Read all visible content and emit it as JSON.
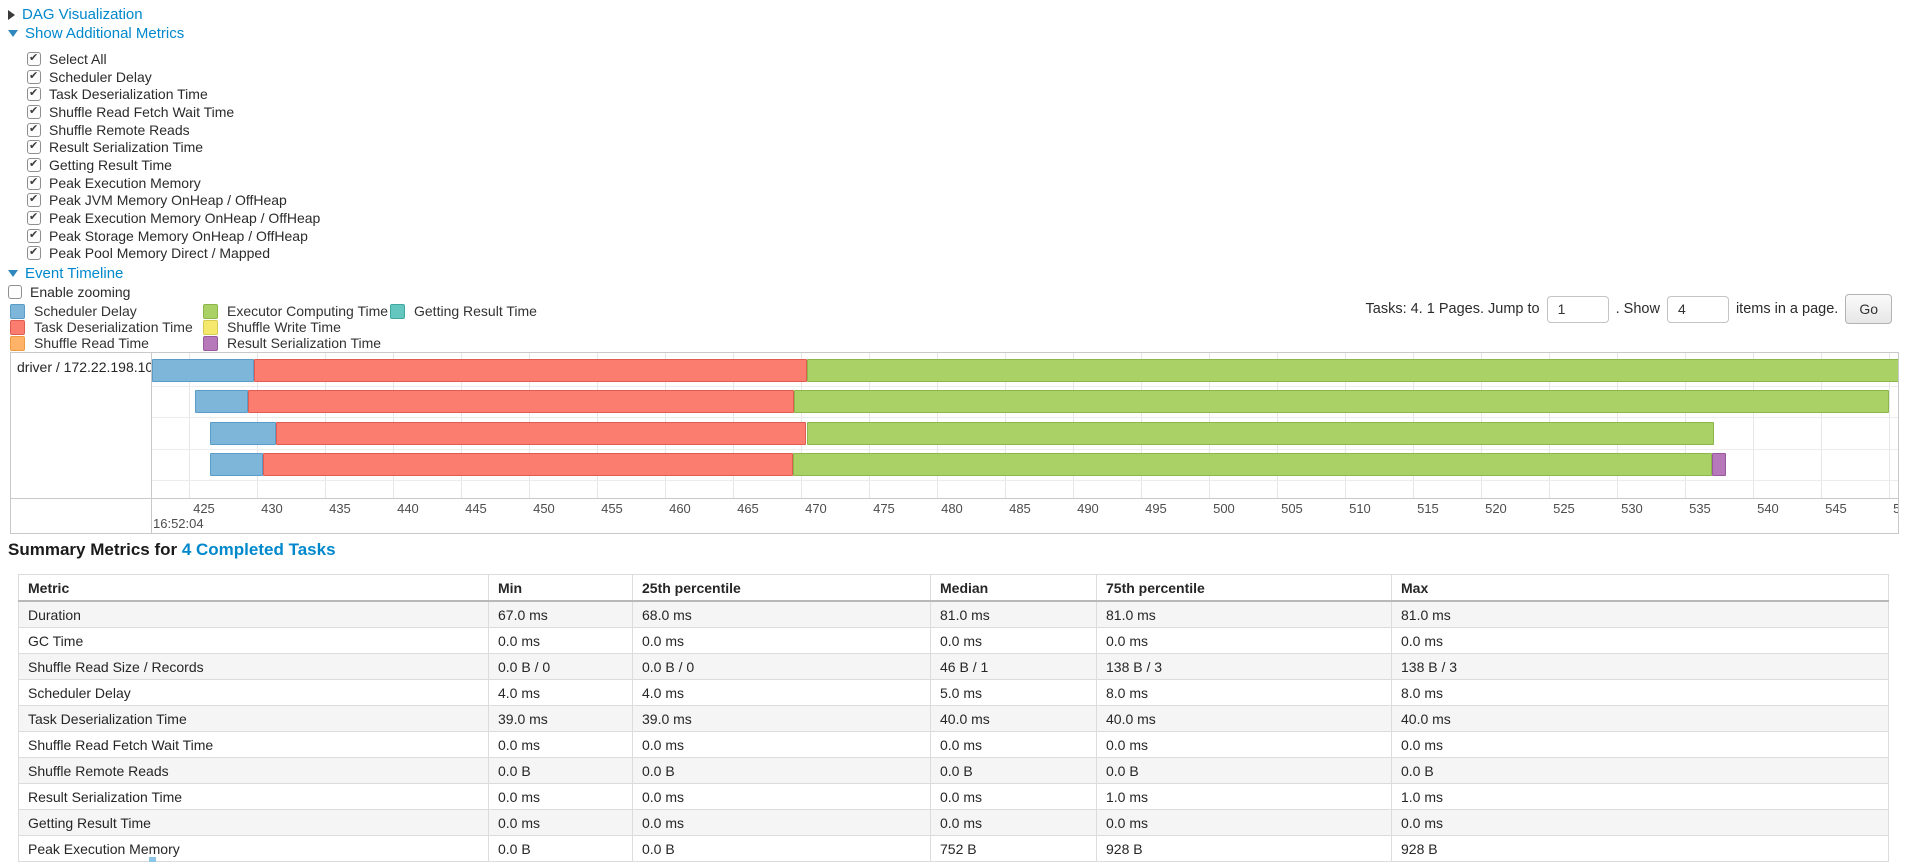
{
  "panel": {
    "dag_toggle": {
      "label": "DAG Visualization",
      "state": "collapsed"
    },
    "metrics_toggle": {
      "label": "Show Additional Metrics",
      "state": "expanded"
    },
    "metric_checkboxes": [
      {
        "label": "Select All",
        "checked": true
      },
      {
        "label": "Scheduler Delay",
        "checked": true
      },
      {
        "label": "Task Deserialization Time",
        "checked": true
      },
      {
        "label": "Shuffle Read Fetch Wait Time",
        "checked": true
      },
      {
        "label": "Shuffle Remote Reads",
        "checked": true
      },
      {
        "label": "Result Serialization Time",
        "checked": true
      },
      {
        "label": "Getting Result Time",
        "checked": true
      },
      {
        "label": "Peak Execution Memory",
        "checked": true
      },
      {
        "label": "Peak JVM Memory OnHeap / OffHeap",
        "checked": true
      },
      {
        "label": "Peak Execution Memory OnHeap / OffHeap",
        "checked": true
      },
      {
        "label": "Peak Storage Memory OnHeap / OffHeap",
        "checked": true
      },
      {
        "label": "Peak Pool Memory Direct / Mapped",
        "checked": true
      }
    ],
    "timeline_toggle": {
      "label": "Event Timeline",
      "state": "expanded"
    },
    "enable_zooming": {
      "label": "Enable zooming",
      "checked": false
    }
  },
  "legend": {
    "columns": [
      [
        {
          "label": "Scheduler Delay",
          "key": "scheduler_delay"
        },
        {
          "label": "Task Deserialization Time",
          "key": "task_deserialization"
        },
        {
          "label": "Shuffle Read Time",
          "key": "shuffle_read"
        }
      ],
      [
        {
          "label": "Executor Computing Time",
          "key": "executor_computing"
        },
        {
          "label": "Shuffle Write Time",
          "key": "shuffle_write"
        },
        {
          "label": "Result Serialization Time",
          "key": "result_serialization"
        }
      ],
      [
        {
          "label": "Getting Result Time",
          "key": "getting_result"
        }
      ]
    ],
    "colors": {
      "scheduler_delay": {
        "fill": "#7EB6DA",
        "border": "#5A9BC8"
      },
      "task_deserialization": {
        "fill": "#FB7D6F",
        "border": "#E05C50"
      },
      "shuffle_read": {
        "fill": "#FFB368",
        "border": "#ED9A41"
      },
      "executor_computing": {
        "fill": "#A9D165",
        "border": "#8CB54A"
      },
      "shuffle_write": {
        "fill": "#F4E86D",
        "border": "#D9CB50"
      },
      "result_serialization": {
        "fill": "#B678B8",
        "border": "#98589E"
      },
      "getting_result": {
        "fill": "#65C6BF",
        "border": "#41A89F"
      }
    }
  },
  "pagination": {
    "prefix": "Tasks: 4. 1 Pages. Jump to",
    "jump_value": "1",
    "middle": ". Show",
    "page_size_value": "4",
    "suffix": "items in a page.",
    "go_label": "Go"
  },
  "timeline": {
    "group_label": "driver / 172.22.198.104",
    "axis": {
      "tick_start_ms": 425,
      "tick_end_ms": 550,
      "tick_step_ms": 5,
      "base_time_label": "16:52:04"
    },
    "tasks": [
      {
        "segments": [
          {
            "key": "scheduler_delay",
            "start": 422.3,
            "end": 429.8
          },
          {
            "key": "task_deserialization",
            "start": 429.8,
            "end": 470.4
          },
          {
            "key": "executor_computing",
            "start": 470.4,
            "end": 550.8
          }
        ]
      },
      {
        "segments": [
          {
            "key": "scheduler_delay",
            "start": 425.4,
            "end": 429.3
          },
          {
            "key": "task_deserialization",
            "start": 429.3,
            "end": 469.5
          },
          {
            "key": "executor_computing",
            "start": 469.5,
            "end": 550.0
          }
        ]
      },
      {
        "segments": [
          {
            "key": "scheduler_delay",
            "start": 426.5,
            "end": 431.4
          },
          {
            "key": "task_deserialization",
            "start": 431.4,
            "end": 470.4
          },
          {
            "key": "executor_computing",
            "start": 470.4,
            "end": 537.1
          }
        ]
      },
      {
        "segments": [
          {
            "key": "scheduler_delay",
            "start": 426.5,
            "end": 430.4
          },
          {
            "key": "task_deserialization",
            "start": 430.4,
            "end": 469.4
          },
          {
            "key": "executor_computing",
            "start": 469.4,
            "end": 537.0
          },
          {
            "key": "result_serialization",
            "start": 537.0,
            "end": 538.0
          }
        ]
      }
    ]
  },
  "summary": {
    "heading_prefix": "Summary Metrics for ",
    "heading_link": "4 Completed Tasks",
    "table": {
      "headers": [
        "Metric",
        "Min",
        "25th percentile",
        "Median",
        "75th percentile",
        "Max"
      ],
      "rows": [
        {
          "metric": "Duration",
          "values": [
            "67.0 ms",
            "68.0 ms",
            "81.0 ms",
            "81.0 ms",
            "81.0 ms"
          ]
        },
        {
          "metric": "GC Time",
          "values": [
            "0.0 ms",
            "0.0 ms",
            "0.0 ms",
            "0.0 ms",
            "0.0 ms"
          ]
        },
        {
          "metric": "Shuffle Read Size / Records",
          "values": [
            "0.0 B / 0",
            "0.0 B / 0",
            "46 B / 1",
            "138 B / 3",
            "138 B / 3"
          ]
        },
        {
          "metric": "Scheduler Delay",
          "values": [
            "4.0 ms",
            "4.0 ms",
            "5.0 ms",
            "8.0 ms",
            "8.0 ms"
          ]
        },
        {
          "metric": "Task Deserialization Time",
          "values": [
            "39.0 ms",
            "39.0 ms",
            "40.0 ms",
            "40.0 ms",
            "40.0 ms"
          ]
        },
        {
          "metric": "Shuffle Read Fetch Wait Time",
          "values": [
            "0.0 ms",
            "0.0 ms",
            "0.0 ms",
            "0.0 ms",
            "0.0 ms"
          ]
        },
        {
          "metric": "Shuffle Remote Reads",
          "values": [
            "0.0 B",
            "0.0 B",
            "0.0 B",
            "0.0 B",
            "0.0 B"
          ]
        },
        {
          "metric": "Result Serialization Time",
          "values": [
            "0.0 ms",
            "0.0 ms",
            "0.0 ms",
            "1.0 ms",
            "1.0 ms"
          ]
        },
        {
          "metric": "Getting Result Time",
          "values": [
            "0.0 ms",
            "0.0 ms",
            "0.0 ms",
            "0.0 ms",
            "0.0 ms"
          ]
        },
        {
          "metric": "Peak Execution Memory",
          "values": [
            "0.0 B",
            "0.0 B",
            "752 B",
            "928 B",
            "928 B"
          ]
        }
      ]
    }
  },
  "colors": {
    "link": "#0088cc"
  }
}
